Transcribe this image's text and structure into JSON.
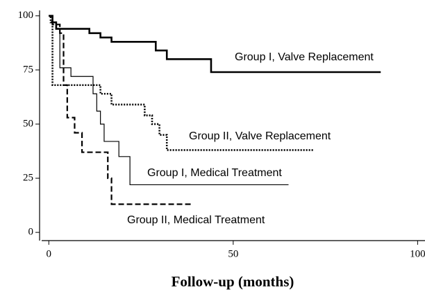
{
  "chart_data": {
    "type": "step",
    "xlabel": "Follow-up (months)",
    "xlim": [
      -2.5,
      102
    ],
    "ylim": [
      -3.8,
      102.5
    ],
    "xticks": [
      0,
      50,
      100
    ],
    "yticks": [
      0,
      25,
      50,
      75,
      100
    ],
    "series": [
      {
        "name": "Group I, Valve Replacement",
        "color": "#000000",
        "style": "thick",
        "x": [
          0,
          1,
          2,
          11,
          14,
          17,
          29,
          32,
          44,
          90
        ],
        "values": [
          100,
          97,
          94,
          92,
          90,
          88,
          84,
          80,
          74,
          74
        ]
      },
      {
        "name": "Group II, Valve Replacement",
        "color": "#000000",
        "style": "dotted",
        "x": [
          0,
          0.5,
          1,
          14,
          17,
          26,
          28,
          30,
          32,
          72
        ],
        "values": [
          100,
          97,
          68,
          64,
          59,
          54,
          50,
          45,
          38,
          38
        ]
      },
      {
        "name": "Group I, Medical Treatment",
        "color": "#000000",
        "style": "thin",
        "x": [
          0,
          1,
          2,
          3,
          6,
          12,
          13,
          14,
          15,
          19,
          22,
          65
        ],
        "values": [
          100,
          97,
          94,
          76,
          72,
          64,
          56,
          50,
          42,
          35,
          22,
          22
        ]
      },
      {
        "name": "Group II, Medical Treatment",
        "color": "#000000",
        "style": "dashed",
        "x": [
          0,
          1,
          3,
          4,
          5,
          7,
          9,
          16,
          17,
          39
        ],
        "values": [
          100,
          96,
          92,
          68,
          53,
          46,
          37,
          25,
          13,
          13
        ]
      }
    ]
  }
}
